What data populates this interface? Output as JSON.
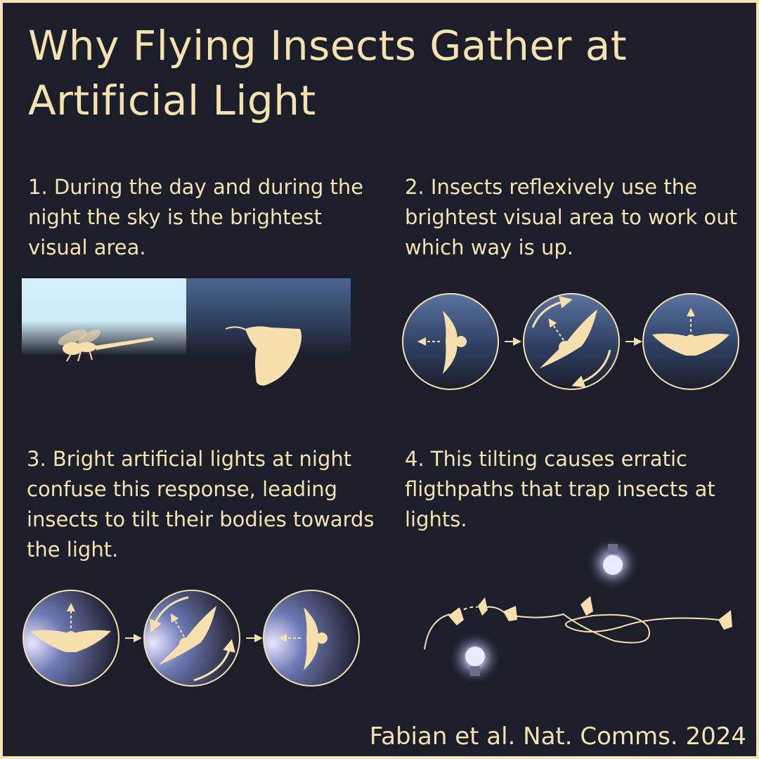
{
  "title": "Why Flying Insects Gather at Artificial Light",
  "steps": [
    {
      "text": "1. During the day and during the night the sky is the brightest visual area."
    },
    {
      "text": "2. Insects reflexively use the brightest visual area to work out which way is up."
    },
    {
      "text": "3. Bright artificial lights at night confuse this response, leading insects to tilt their bodies towards the light."
    },
    {
      "text": "4. This tilting causes erratic fligthpaths that trap insects at lights."
    }
  ],
  "citation": "Fabian et al. Nat. Comms. 2024",
  "colors": {
    "background": "#1c1f2b",
    "text": "#f6e2ae",
    "insect": "#f7e0ad",
    "day_sky": "#d6f1fb",
    "night_sky": "#4c6591",
    "lamp_glow": "#e9e6ff"
  }
}
